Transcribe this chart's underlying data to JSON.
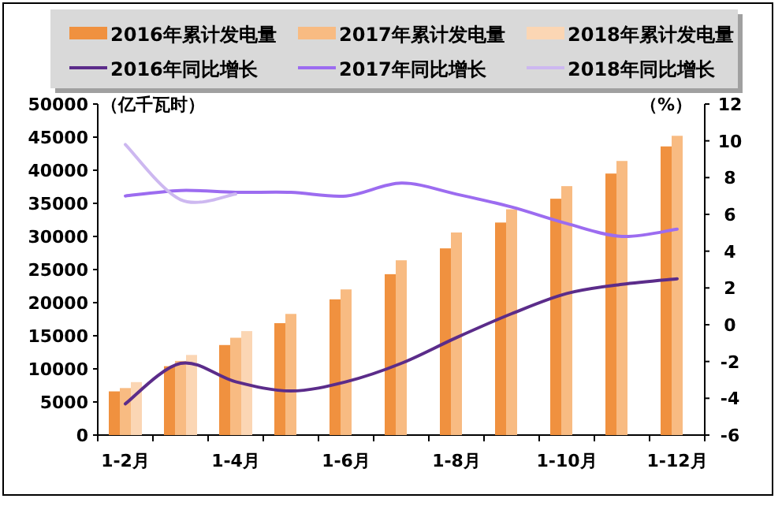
{
  "chart_data": {
    "type": "bar",
    "ylabel": "（亿千瓦时）",
    "y2label": "（%）",
    "categories": [
      "1-2月",
      null,
      "1-4月",
      null,
      "1-6月",
      null,
      "1-8月",
      null,
      "1-10月",
      null,
      "1-12月"
    ],
    "series": [
      {
        "name": "2016年累计发电量",
        "color": "#f0913f",
        "values": [
          6600,
          10400,
          13600,
          16900,
          20500,
          24300,
          28200,
          32100,
          35700,
          39500,
          43600
        ]
      },
      {
        "name": "2017年累计发电量",
        "color": "#f8bb82",
        "values": [
          7100,
          11200,
          14700,
          18300,
          22000,
          26400,
          30600,
          34100,
          37600,
          41400,
          45200
        ]
      },
      {
        "name": "2018年累计发电量",
        "color": "#fbd6b4",
        "values": [
          8000,
          12100,
          15700,
          null,
          null,
          null,
          null,
          null,
          null,
          null,
          null
        ]
      },
      {
        "name": "2016年同比增长",
        "type": "line",
        "axis": "y2",
        "color": "#5b2c8a",
        "values": [
          -4.3,
          -2.1,
          -3.1,
          -3.6,
          -3.1,
          -2.1,
          -0.7,
          0.6,
          1.7,
          2.2,
          2.5
        ]
      },
      {
        "name": "2017年同比增长",
        "type": "line",
        "axis": "y2",
        "color": "#9c6cf0",
        "values": [
          7,
          7.3,
          7.2,
          7.2,
          7,
          7.7,
          7.1,
          6.4,
          5.5,
          4.8,
          5.2
        ]
      },
      {
        "name": "2018年同比增长",
        "type": "line",
        "axis": "y2",
        "color": "#cdb8f0",
        "values": [
          9.8,
          6.8,
          7.1,
          null,
          null,
          null,
          null,
          null,
          null,
          null,
          null
        ]
      }
    ],
    "ylim": [
      0,
      50000
    ],
    "yticks": [
      0,
      5000,
      10000,
      15000,
      20000,
      25000,
      30000,
      35000,
      40000,
      45000,
      50000
    ],
    "y2lim": [
      -6,
      12
    ],
    "y2ticks": [
      -6,
      -4,
      -2,
      0,
      2,
      4,
      6,
      8,
      10,
      12
    ],
    "legend": "top",
    "grid": false
  }
}
